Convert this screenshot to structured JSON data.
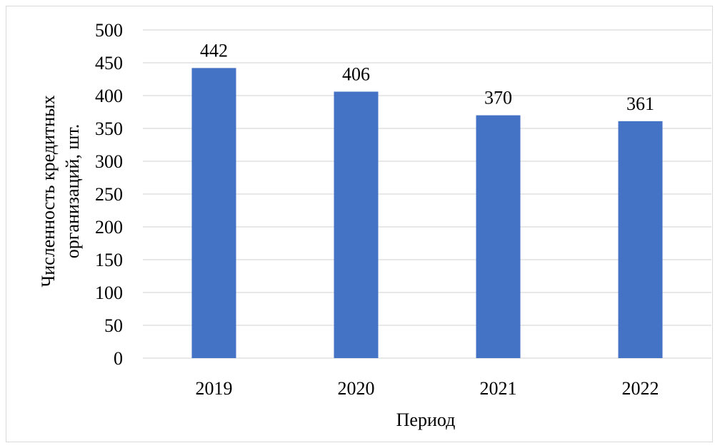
{
  "chart_data": {
    "type": "bar",
    "title": "",
    "categories": [
      "2019",
      "2020",
      "2021",
      "2022"
    ],
    "values": [
      442,
      406,
      370,
      361
    ],
    "data_labels": [
      "442",
      "406",
      "370",
      "361"
    ],
    "xlabel": "Период",
    "ylabel_lines": [
      "Численность кредитных",
      "организаций, шт."
    ],
    "ylim": [
      0,
      500
    ],
    "yticks": [
      "0",
      "50",
      "100",
      "150",
      "200",
      "250",
      "300",
      "350",
      "400",
      "450",
      "500"
    ],
    "grid": true,
    "legend": "none",
    "bar_color": "#4472C4",
    "grid_color": "#d9d9d9"
  }
}
